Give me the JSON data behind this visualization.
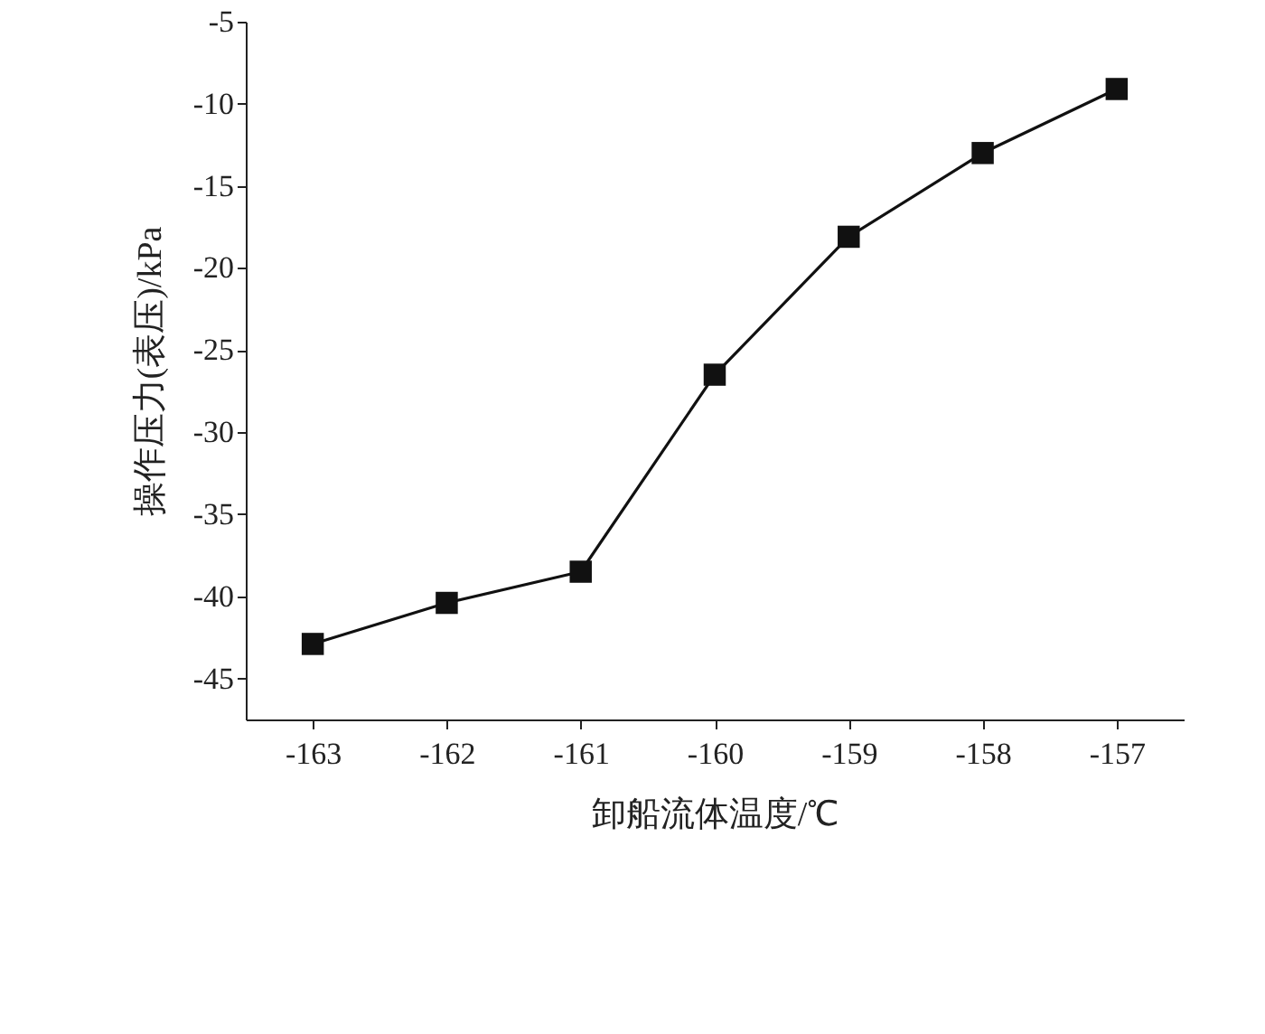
{
  "chart_data": {
    "type": "line",
    "xlabel": "卸船流体温度/℃",
    "ylabel": "操作压力(表压)/kPa",
    "x": [
      -163,
      -162,
      -161,
      -160,
      -159,
      -158,
      -157
    ],
    "series": [
      {
        "color": "#111111",
        "values": [
          -42.9,
          -40.4,
          -38.5,
          -26.5,
          -18.1,
          -13.0,
          -9.1
        ]
      }
    ],
    "xlim": [
      -163.5,
      -156.5
    ],
    "xticks": [
      -163,
      -162,
      -161,
      -160,
      -159,
      -158,
      -157
    ],
    "ylim": [
      -47.5,
      -5
    ],
    "yticks": [
      -45,
      -40,
      -35,
      -30,
      -25,
      -20,
      -15,
      -10,
      -5
    ],
    "marker": "square",
    "line_style": "solid",
    "grid": false
  }
}
